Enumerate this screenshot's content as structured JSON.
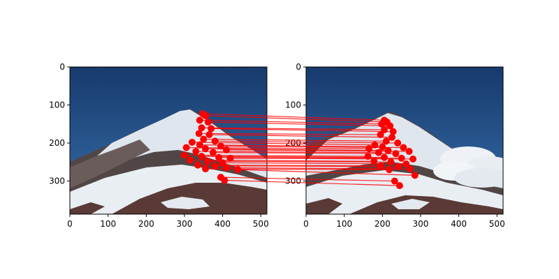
{
  "chart_data": {
    "type": "scatter",
    "description_free": true,
    "colors": {
      "match": "#ff0000",
      "sky": "#1d4478",
      "snow": "#e6ecf2",
      "rock": "#4a3431"
    },
    "panels": [
      {
        "name": "",
        "xlim": [
          0,
          516
        ],
        "ylim": [
          387,
          0
        ],
        "xticks": [
          0,
          100,
          200,
          300,
          400,
          500
        ],
        "yticks": [
          0,
          100,
          200,
          300
        ],
        "xticklabels": [
          "0",
          "100",
          "200",
          "300",
          "400",
          "500"
        ],
        "yticklabels": [
          "0",
          "100",
          "200",
          "300"
        ]
      },
      {
        "name": "",
        "xlim": [
          0,
          516
        ],
        "ylim": [
          387,
          0
        ],
        "xticks": [
          0,
          100,
          200,
          300,
          400,
          500
        ],
        "yticks": [
          0,
          100,
          200,
          300
        ],
        "xticklabels": [
          "0",
          "100",
          "200",
          "300",
          "400",
          "500"
        ],
        "yticklabels": [
          "0",
          "100",
          "200",
          "300"
        ]
      }
    ],
    "matches": [
      {
        "a": [
          348,
          123
        ],
        "b": [
          205,
          140
        ]
      },
      {
        "a": [
          355,
          128
        ],
        "b": [
          212,
          145
        ]
      },
      {
        "a": [
          340,
          140
        ],
        "b": [
          198,
          150
        ]
      },
      {
        "a": [
          362,
          145
        ],
        "b": [
          220,
          155
        ]
      },
      {
        "a": [
          345,
          160
        ],
        "b": [
          205,
          165
        ]
      },
      {
        "a": [
          370,
          162
        ],
        "b": [
          228,
          170
        ]
      },
      {
        "a": [
          338,
          175
        ],
        "b": [
          195,
          178
        ]
      },
      {
        "a": [
          365,
          178
        ],
        "b": [
          225,
          185
        ]
      },
      {
        "a": [
          350,
          190
        ],
        "b": [
          210,
          195
        ]
      },
      {
        "a": [
          380,
          195
        ],
        "b": [
          240,
          200
        ]
      },
      {
        "a": [
          320,
          198
        ],
        "b": [
          180,
          205
        ]
      },
      {
        "a": [
          340,
          205
        ],
        "b": [
          200,
          210
        ]
      },
      {
        "a": [
          395,
          208
        ],
        "b": [
          255,
          212
        ]
      },
      {
        "a": [
          305,
          212
        ],
        "b": [
          165,
          215
        ]
      },
      {
        "a": [
          355,
          215
        ],
        "b": [
          215,
          220
        ]
      },
      {
        "a": [
          410,
          218
        ],
        "b": [
          270,
          222
        ]
      },
      {
        "a": [
          330,
          222
        ],
        "b": [
          190,
          225
        ]
      },
      {
        "a": [
          375,
          225
        ],
        "b": [
          235,
          228
        ]
      },
      {
        "a": [
          300,
          232
        ],
        "b": [
          162,
          235
        ]
      },
      {
        "a": [
          345,
          235
        ],
        "b": [
          205,
          238
        ]
      },
      {
        "a": [
          390,
          238
        ],
        "b": [
          250,
          240
        ]
      },
      {
        "a": [
          420,
          240
        ],
        "b": [
          280,
          242
        ]
      },
      {
        "a": [
          315,
          245
        ],
        "b": [
          178,
          248
        ]
      },
      {
        "a": [
          360,
          248
        ],
        "b": [
          222,
          250
        ]
      },
      {
        "a": [
          400,
          252
        ],
        "b": [
          262,
          255
        ]
      },
      {
        "a": [
          335,
          258
        ],
        "b": [
          195,
          260
        ]
      },
      {
        "a": [
          380,
          260
        ],
        "b": [
          242,
          262
        ]
      },
      {
        "a": [
          355,
          268
        ],
        "b": [
          218,
          270
        ]
      },
      {
        "a": [
          410,
          265
        ],
        "b": [
          272,
          268
        ]
      },
      {
        "a": [
          440,
          270
        ],
        "b": [
          285,
          285
        ]
      },
      {
        "a": [
          395,
          290
        ],
        "b": [
          232,
          300
        ]
      },
      {
        "a": [
          405,
          298
        ],
        "b": [
          245,
          312
        ]
      }
    ]
  }
}
